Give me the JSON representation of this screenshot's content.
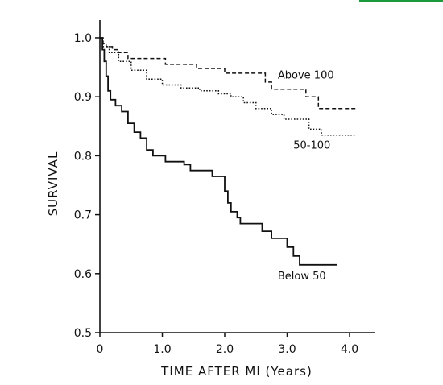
{
  "chart_data": {
    "type": "line",
    "title": "",
    "xlabel": "TIME AFTER MI (Years)",
    "ylabel": "SURVIVAL",
    "xlim": [
      0,
      4.4
    ],
    "ylim": [
      0.5,
      1.03
    ],
    "x_ticks": [
      0,
      1.0,
      2.0,
      3.0,
      4.0
    ],
    "x_tick_labels": [
      "0",
      "1.0",
      "2.0",
      "3.0",
      "4.0"
    ],
    "y_ticks": [
      0.5,
      0.6,
      0.7,
      0.8,
      0.9,
      1.0
    ],
    "y_tick_labels": [
      "0.5",
      "0.6",
      "0.7",
      "0.8",
      "0.9",
      "1.0"
    ],
    "grid": false,
    "series": [
      {
        "name": "Above 100",
        "style": "dashed",
        "points": [
          [
            0,
            1.0
          ],
          [
            0.05,
            0.99
          ],
          [
            0.1,
            0.985
          ],
          [
            0.2,
            0.98
          ],
          [
            0.3,
            0.975
          ],
          [
            0.45,
            0.965
          ],
          [
            1.0,
            0.965
          ],
          [
            1.05,
            0.955
          ],
          [
            1.45,
            0.955
          ],
          [
            1.55,
            0.948
          ],
          [
            1.95,
            0.948
          ],
          [
            2.0,
            0.94
          ],
          [
            2.6,
            0.94
          ],
          [
            2.65,
            0.925
          ],
          [
            2.75,
            0.913
          ],
          [
            3.2,
            0.913
          ],
          [
            3.3,
            0.9
          ],
          [
            3.45,
            0.9
          ],
          [
            3.5,
            0.88
          ],
          [
            4.1,
            0.88
          ]
        ]
      },
      {
        "name": "50-100",
        "style": "dotted",
        "points": [
          [
            0,
            1.0
          ],
          [
            0.05,
            0.985
          ],
          [
            0.15,
            0.975
          ],
          [
            0.3,
            0.96
          ],
          [
            0.5,
            0.945
          ],
          [
            0.75,
            0.93
          ],
          [
            1.0,
            0.92
          ],
          [
            1.3,
            0.915
          ],
          [
            1.6,
            0.91
          ],
          [
            1.9,
            0.905
          ],
          [
            2.1,
            0.9
          ],
          [
            2.3,
            0.89
          ],
          [
            2.5,
            0.88
          ],
          [
            2.75,
            0.87
          ],
          [
            2.95,
            0.862
          ],
          [
            3.3,
            0.862
          ],
          [
            3.35,
            0.845
          ],
          [
            3.5,
            0.845
          ],
          [
            3.55,
            0.835
          ],
          [
            4.1,
            0.835
          ]
        ]
      },
      {
        "name": "Below 50",
        "style": "solid",
        "points": [
          [
            0,
            1.0
          ],
          [
            0.04,
            0.98
          ],
          [
            0.07,
            0.96
          ],
          [
            0.1,
            0.935
          ],
          [
            0.13,
            0.91
          ],
          [
            0.17,
            0.895
          ],
          [
            0.25,
            0.885
          ],
          [
            0.35,
            0.875
          ],
          [
            0.45,
            0.855
          ],
          [
            0.55,
            0.84
          ],
          [
            0.65,
            0.83
          ],
          [
            0.75,
            0.81
          ],
          [
            0.85,
            0.8
          ],
          [
            1.0,
            0.8
          ],
          [
            1.05,
            0.79
          ],
          [
            1.25,
            0.79
          ],
          [
            1.35,
            0.785
          ],
          [
            1.45,
            0.775
          ],
          [
            1.75,
            0.775
          ],
          [
            1.8,
            0.765
          ],
          [
            1.95,
            0.765
          ],
          [
            2.0,
            0.74
          ],
          [
            2.05,
            0.72
          ],
          [
            2.1,
            0.705
          ],
          [
            2.2,
            0.695
          ],
          [
            2.25,
            0.685
          ],
          [
            2.55,
            0.685
          ],
          [
            2.6,
            0.672
          ],
          [
            2.75,
            0.66
          ],
          [
            2.95,
            0.66
          ],
          [
            3.0,
            0.645
          ],
          [
            3.1,
            0.63
          ],
          [
            3.2,
            0.615
          ],
          [
            3.8,
            0.615
          ]
        ]
      }
    ],
    "annotations": [
      {
        "text": "Above 100",
        "series": "Above 100",
        "x": 2.85,
        "y": 0.931
      },
      {
        "text": "50-100",
        "series": "50-100",
        "x": 3.1,
        "y": 0.812
      },
      {
        "text": "Below 50",
        "series": "Below 50",
        "x": 2.85,
        "y": 0.59
      }
    ]
  }
}
